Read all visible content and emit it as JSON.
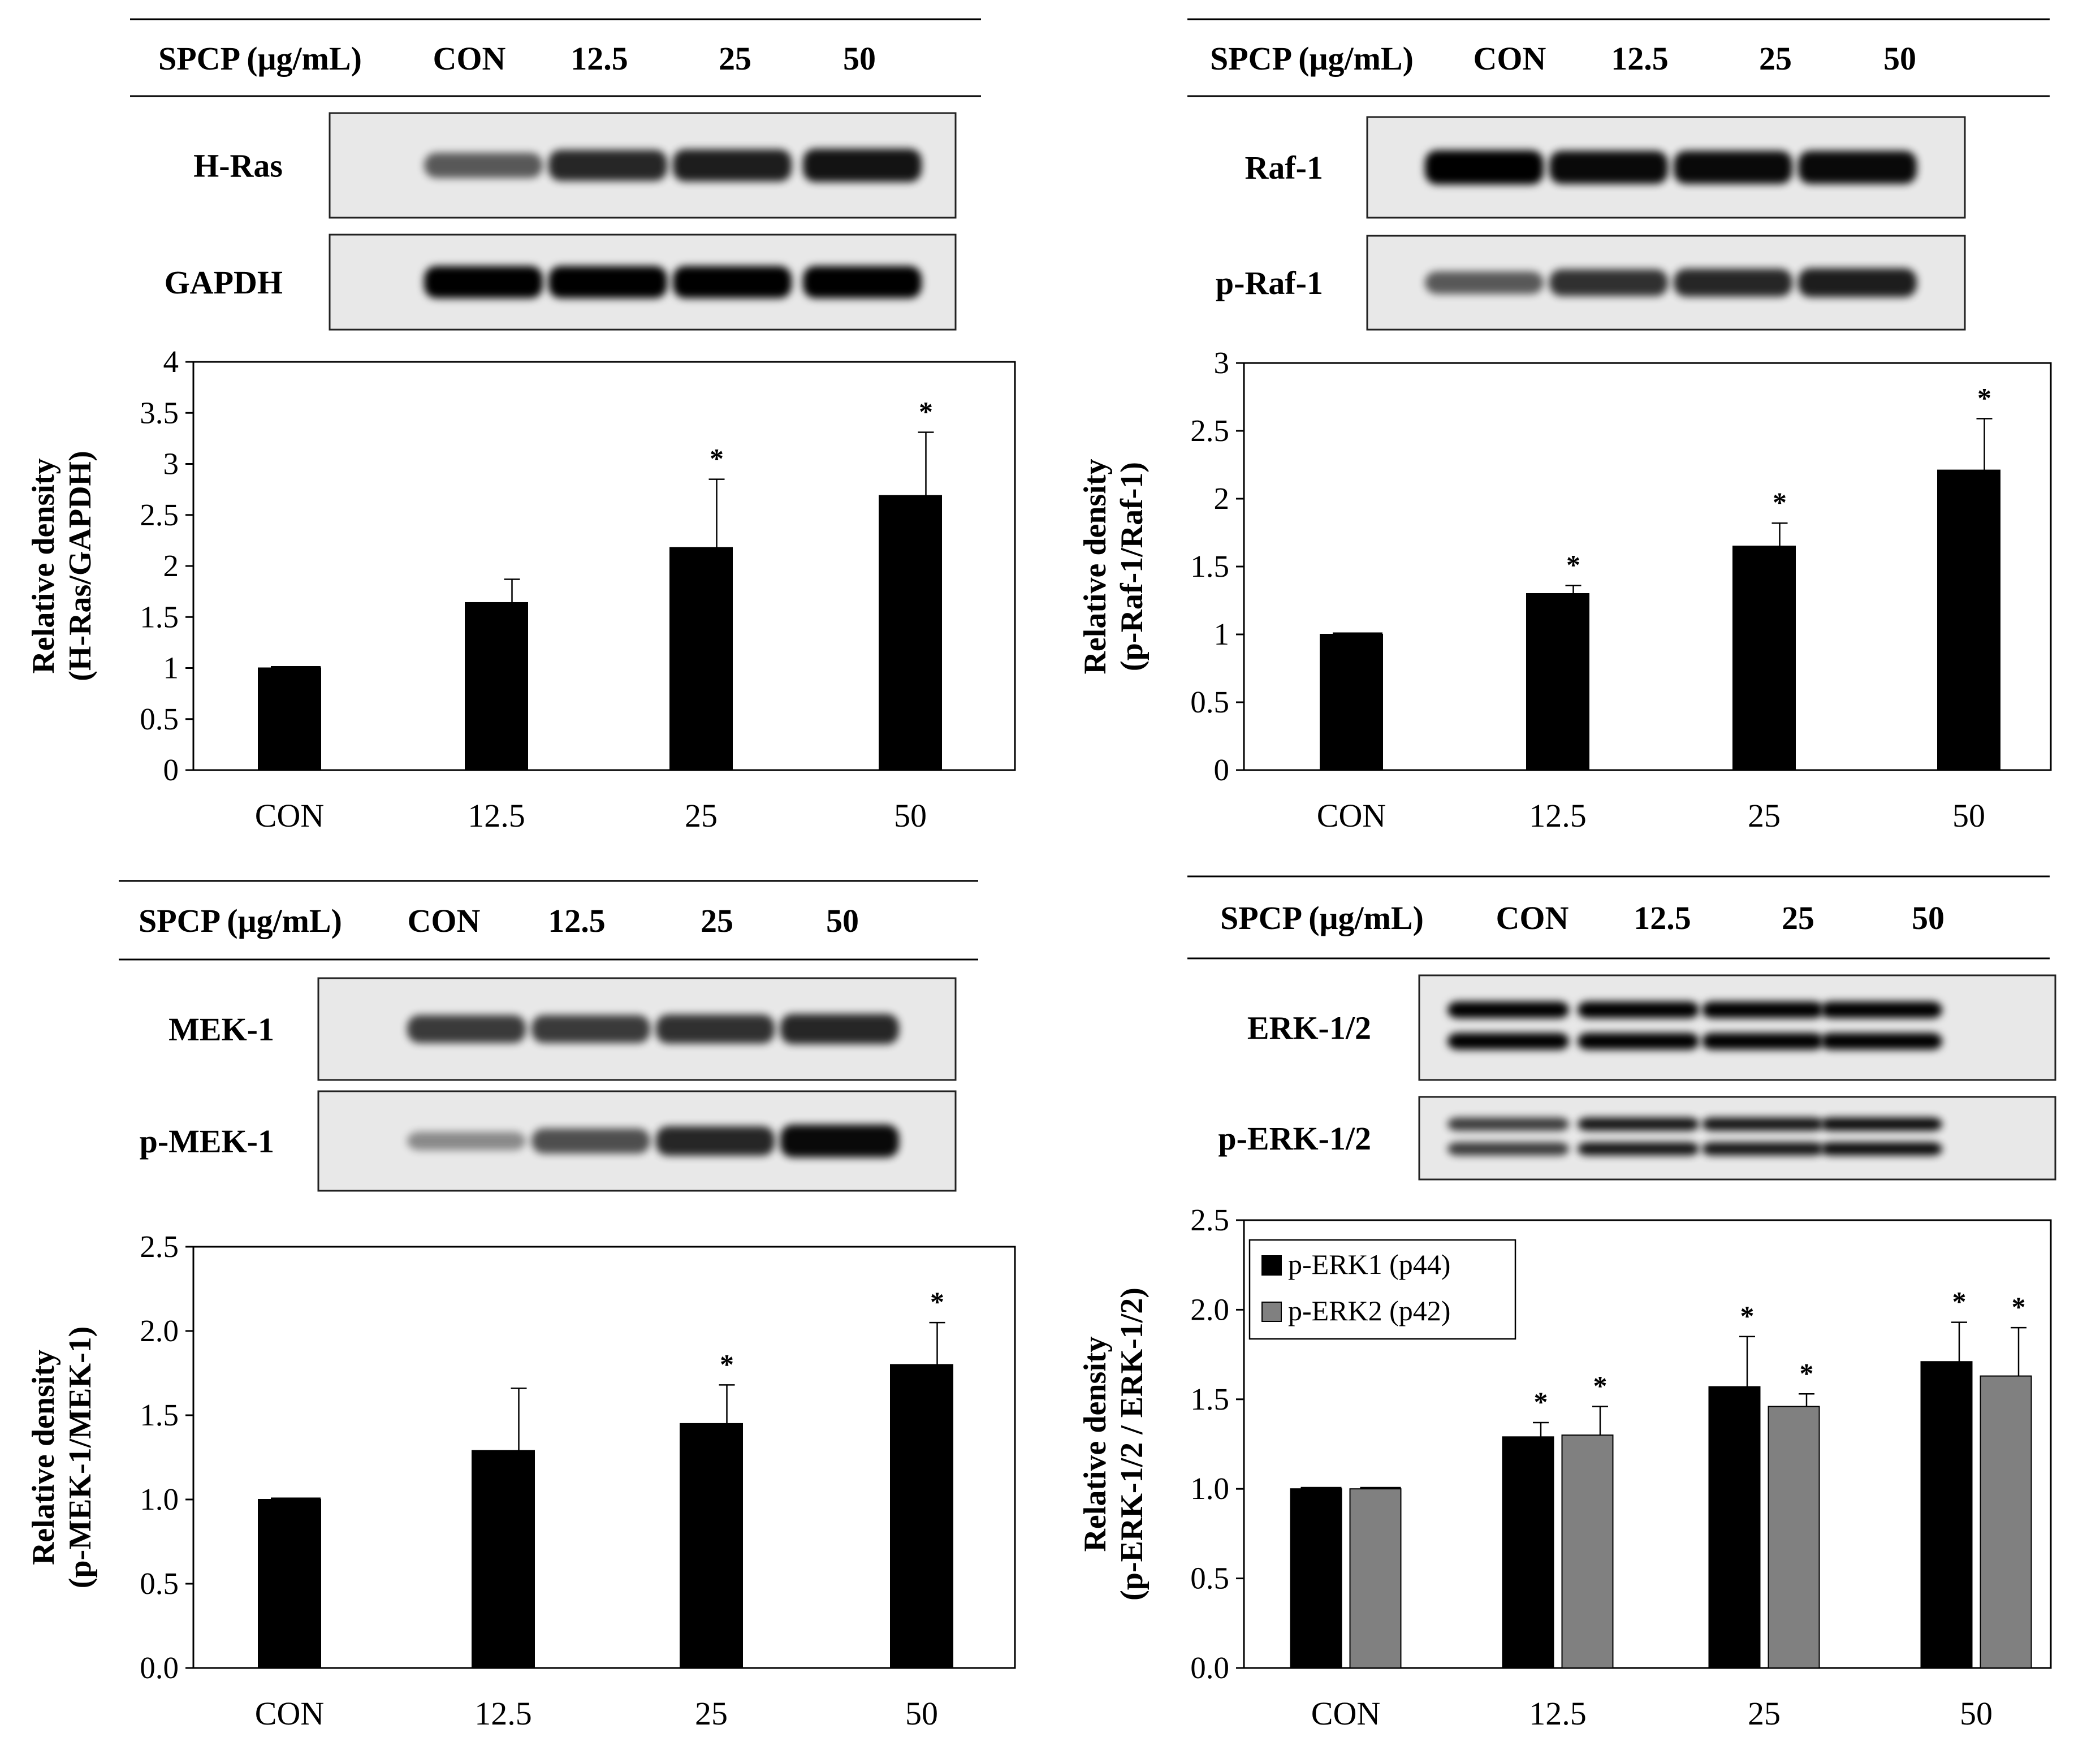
{
  "colors": {
    "black": "#000000",
    "gray": "#808080",
    "blot_bg": "#e8e8e8"
  },
  "panels": [
    {
      "id": "hras",
      "header": {
        "label": "SPCP (μg/mL)",
        "lanes": [
          "CON",
          "12.5",
          "25",
          "50"
        ]
      },
      "blots": [
        {
          "label": "H-Ras",
          "intensity": [
            0.55,
            0.8,
            0.85,
            0.9
          ]
        },
        {
          "label": "GAPDH",
          "intensity": [
            1.0,
            1.0,
            1.0,
            1.0
          ]
        }
      ],
      "chart_data": {
        "type": "bar",
        "categories": [
          "CON",
          "12.5",
          "25",
          "50"
        ],
        "series": [
          {
            "values": [
              1.0,
              1.64,
              2.18,
              2.69
            ],
            "errors": [
              0.0,
              0.23,
              0.67,
              0.62
            ],
            "significant": [
              false,
              false,
              true,
              true
            ],
            "color": "#000000"
          }
        ],
        "ylabel_line1": "Relative density",
        "ylabel_line2": "(H-Ras/GAPDH)",
        "ylim": [
          0,
          4
        ],
        "yticks": [
          "0",
          "0.5",
          "1",
          "1.5",
          "2",
          "2.5",
          "3",
          "3.5",
          "4"
        ],
        "ytick_values": [
          0,
          0.5,
          1,
          1.5,
          2,
          2.5,
          3,
          3.5,
          4
        ],
        "significance_mark": "*",
        "grid": false
      }
    },
    {
      "id": "raf1",
      "header": {
        "label": "SPCP (μg/mL)",
        "lanes": [
          "CON",
          "12.5",
          "25",
          "50"
        ]
      },
      "blots": [
        {
          "label": "Raf-1",
          "intensity": [
            1.0,
            0.95,
            0.95,
            0.95
          ]
        },
        {
          "label": "p-Raf-1",
          "intensity": [
            0.55,
            0.75,
            0.8,
            0.85
          ]
        }
      ],
      "chart_data": {
        "type": "bar",
        "categories": [
          "CON",
          "12.5",
          "25",
          "50"
        ],
        "series": [
          {
            "values": [
              1.0,
              1.3,
              1.65,
              2.21
            ],
            "errors": [
              0.0,
              0.06,
              0.17,
              0.38
            ],
            "significant": [
              false,
              true,
              true,
              true
            ],
            "color": "#000000"
          }
        ],
        "ylabel_line1": "Relative density",
        "ylabel_line2": "(p-Raf-1/Raf-1)",
        "ylim": [
          0,
          3
        ],
        "yticks": [
          "0",
          "0.5",
          "1",
          "1.5",
          "2",
          "2.5",
          "3"
        ],
        "ytick_values": [
          0,
          0.5,
          1,
          1.5,
          2,
          2.5,
          3
        ],
        "significance_mark": "*",
        "grid": false
      }
    },
    {
      "id": "mek1",
      "header": {
        "label": "SPCP (μg/mL)",
        "lanes": [
          "CON",
          "12.5",
          "25",
          "50"
        ]
      },
      "blots": [
        {
          "label": "MEK-1",
          "intensity": [
            0.7,
            0.7,
            0.75,
            0.8
          ]
        },
        {
          "label": "p-MEK-1",
          "intensity": [
            0.3,
            0.6,
            0.8,
            0.95
          ]
        }
      ],
      "chart_data": {
        "type": "bar",
        "categories": [
          "CON",
          "12.5",
          "25",
          "50"
        ],
        "series": [
          {
            "values": [
              1.0,
              1.29,
              1.45,
              1.8
            ],
            "errors": [
              0.0,
              0.37,
              0.23,
              0.25
            ],
            "significant": [
              false,
              false,
              true,
              true
            ],
            "color": "#000000"
          }
        ],
        "ylabel_line1": "Relative density",
        "ylabel_line2": "(p-MEK-1/MEK-1)",
        "ylim": [
          0,
          2.5
        ],
        "yticks": [
          "0.0",
          "0.5",
          "1.0",
          "1.5",
          "2.0",
          "2.5"
        ],
        "ytick_values": [
          0,
          0.5,
          1,
          1.5,
          2,
          2.5
        ],
        "significance_mark": "*",
        "grid": false
      }
    },
    {
      "id": "erk12",
      "header": {
        "label": "SPCP (μg/mL)",
        "lanes": [
          "CON",
          "12.5",
          "25",
          "50"
        ]
      },
      "blots": [
        {
          "label": "ERK-1/2",
          "intensity": [
            1.0,
            1.0,
            1.0,
            1.0
          ],
          "double": true
        },
        {
          "label": "p-ERK-1/2",
          "intensity": [
            0.7,
            0.9,
            0.9,
            0.95
          ],
          "double": true
        }
      ],
      "chart_data": {
        "type": "bar",
        "categories": [
          "CON",
          "12.5",
          "25",
          "50"
        ],
        "series": [
          {
            "name": "p-ERK1 (p44)",
            "values": [
              1.0,
              1.29,
              1.57,
              1.71
            ],
            "errors": [
              0.0,
              0.08,
              0.28,
              0.22
            ],
            "significant": [
              false,
              true,
              true,
              true
            ],
            "color": "#000000"
          },
          {
            "name": "p-ERK2 (p42)",
            "values": [
              1.0,
              1.3,
              1.46,
              1.63
            ],
            "errors": [
              0.0,
              0.16,
              0.07,
              0.27
            ],
            "significant": [
              false,
              true,
              true,
              true
            ],
            "color": "#808080"
          }
        ],
        "ylabel_line1": "Relative density",
        "ylabel_line2": "(p-ERK-1/2  / ERK-1/2)",
        "ylim": [
          0,
          2.5
        ],
        "yticks": [
          "0.0",
          "0.5",
          "1.0",
          "1.5",
          "2.0",
          "2.5"
        ],
        "ytick_values": [
          0,
          0.5,
          1,
          1.5,
          2,
          2.5
        ],
        "legend": "top-left",
        "significance_mark": "*",
        "grid": false
      }
    }
  ]
}
